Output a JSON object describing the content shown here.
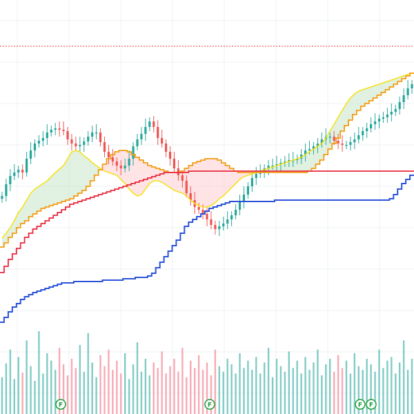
{
  "chart_data": {
    "type": "candlestick",
    "grid": true,
    "colors": {
      "up": "#26a69a",
      "down": "#ef5350",
      "conversion_line": "#f5e11b",
      "base_line": "#f39c12",
      "lagging_span": "#e8283c",
      "long_baseline": "#2a52d8",
      "cloud_bull": "#c8e6c9",
      "cloud_bear": "#ffcdd2",
      "volume_up": "#80cbc4",
      "volume_down": "#f7a9b4",
      "reference_line": "#e53935",
      "marker": "#1b9c3a"
    },
    "price_range": [
      0,
      600
    ],
    "reference_level": 533,
    "candles_close": [
      316,
      333,
      345,
      350,
      354,
      350,
      370,
      382,
      392,
      396,
      400,
      408,
      412,
      414,
      412,
      410,
      398,
      392,
      388,
      390,
      395,
      402,
      408,
      408,
      394,
      380,
      372,
      366,
      360,
      356,
      360,
      370,
      388,
      398,
      406,
      416,
      424,
      416,
      400,
      392,
      380,
      370,
      356,
      346,
      338,
      320,
      310,
      300,
      296,
      290,
      282,
      274,
      268,
      272,
      276,
      282,
      288,
      296,
      308,
      318,
      330,
      342,
      348,
      350,
      356,
      360,
      360,
      362,
      364,
      366,
      368,
      368,
      370,
      376,
      382,
      384,
      388,
      392,
      398,
      402,
      402,
      396,
      392,
      390,
      390,
      394,
      398,
      404,
      410,
      414,
      420,
      424,
      428,
      430,
      434,
      438,
      442,
      452,
      462,
      472,
      478
    ],
    "conversion_line": [
      255,
      262,
      270,
      280,
      292,
      300,
      310,
      320,
      326,
      330,
      334,
      338,
      344,
      350,
      355,
      360,
      370,
      380,
      382,
      380,
      374,
      370,
      364,
      360,
      356,
      352,
      350,
      348,
      346,
      340,
      334,
      326,
      320,
      316,
      318,
      326,
      334,
      338,
      338,
      336,
      332,
      328,
      324,
      322,
      320,
      316,
      310,
      305,
      302,
      300,
      300,
      302,
      306,
      312,
      316,
      322,
      328,
      334,
      340,
      344,
      346,
      348,
      350,
      352,
      354,
      356,
      358,
      360,
      362,
      364,
      366,
      368,
      370,
      372,
      376,
      380,
      384,
      388,
      392,
      400,
      410,
      420,
      430,
      440,
      450,
      458,
      464,
      468,
      470,
      472,
      474,
      476,
      478,
      480,
      482,
      484,
      486,
      488,
      490,
      492,
      494
    ],
    "base_line": [
      242,
      248,
      256,
      262,
      270,
      276,
      280,
      286,
      290,
      294,
      298,
      300,
      302,
      304,
      306,
      308,
      310,
      312,
      316,
      320,
      324,
      330,
      338,
      346,
      354,
      362,
      370,
      376,
      380,
      382,
      382,
      380,
      376,
      372,
      368,
      364,
      360,
      358,
      356,
      354,
      352,
      350,
      350,
      350,
      352,
      356,
      360,
      364,
      366,
      368,
      370,
      370,
      370,
      368,
      364,
      360,
      356,
      352,
      350,
      350,
      350,
      350,
      350,
      350,
      350,
      350,
      350,
      350,
      350,
      350,
      350,
      350,
      350,
      350,
      350,
      352,
      356,
      362,
      368,
      376,
      384,
      392,
      400,
      410,
      418,
      426,
      434,
      440,
      446,
      450,
      454,
      458,
      462,
      466,
      470,
      474,
      478,
      482,
      486,
      490,
      494
    ],
    "lagging_span": [
      205,
      214,
      224,
      232,
      240,
      248,
      256,
      262,
      268,
      272,
      276,
      280,
      284,
      288,
      292,
      296,
      300,
      304,
      306,
      308,
      310,
      312,
      314,
      316,
      318,
      320,
      322,
      324,
      326,
      328,
      330,
      332,
      334,
      336,
      338,
      340,
      342,
      344,
      346,
      348,
      350,
      350,
      350,
      350,
      350,
      350,
      352,
      352,
      352,
      352,
      352,
      352,
      352,
      352,
      352,
      352,
      352,
      352,
      352,
      352,
      352,
      352,
      352,
      352,
      352,
      352,
      352,
      352,
      352,
      352,
      352,
      352,
      352,
      352,
      352,
      352,
      352,
      352,
      352,
      352,
      352,
      352,
      352,
      352,
      352,
      352,
      352,
      352,
      352,
      352,
      352,
      352,
      352,
      352,
      352,
      352,
      352,
      352,
      352,
      352,
      352
    ],
    "long_baseline": [
      133,
      140,
      148,
      155,
      160,
      166,
      170,
      173,
      176,
      178,
      180,
      182,
      184,
      186,
      188,
      190,
      190,
      190,
      192,
      192,
      192,
      192,
      192,
      192,
      192,
      194,
      194,
      194,
      194,
      194,
      196,
      196,
      196,
      198,
      198,
      198,
      200,
      204,
      212,
      220,
      228,
      236,
      244,
      252,
      262,
      272,
      278,
      282,
      286,
      290,
      294,
      298,
      300,
      302,
      304,
      306,
      308,
      308,
      308,
      308,
      308,
      308,
      308,
      308,
      308,
      308,
      308,
      310,
      310,
      310,
      310,
      310,
      310,
      310,
      310,
      310,
      310,
      310,
      310,
      310,
      310,
      310,
      310,
      310,
      310,
      310,
      310,
      310,
      310,
      310,
      310,
      310,
      310,
      310,
      310,
      312,
      318,
      326,
      334,
      340,
      346
    ],
    "volume": [
      40,
      55,
      70,
      38,
      62,
      45,
      80,
      52,
      36,
      90,
      44,
      66,
      58,
      48,
      72,
      54,
      42,
      60,
      50,
      75,
      46,
      88,
      56,
      40,
      64,
      52,
      70,
      48,
      58,
      44,
      66,
      38,
      54,
      78,
      46,
      60,
      42,
      56,
      50,
      68,
      44,
      52,
      60,
      46,
      72,
      40,
      58,
      50,
      64,
      48,
      56,
      42,
      70,
      52,
      46,
      60,
      54,
      44,
      66,
      50,
      58,
      48,
      62,
      44,
      56,
      72,
      40,
      60,
      52,
      46,
      68,
      50,
      58,
      44,
      62,
      48,
      56,
      70,
      42,
      54,
      60,
      46,
      64,
      50,
      58,
      44,
      66,
      52,
      48,
      60,
      54,
      46,
      70,
      50,
      58,
      62,
      44,
      56,
      80,
      48,
      60
    ]
  }
}
